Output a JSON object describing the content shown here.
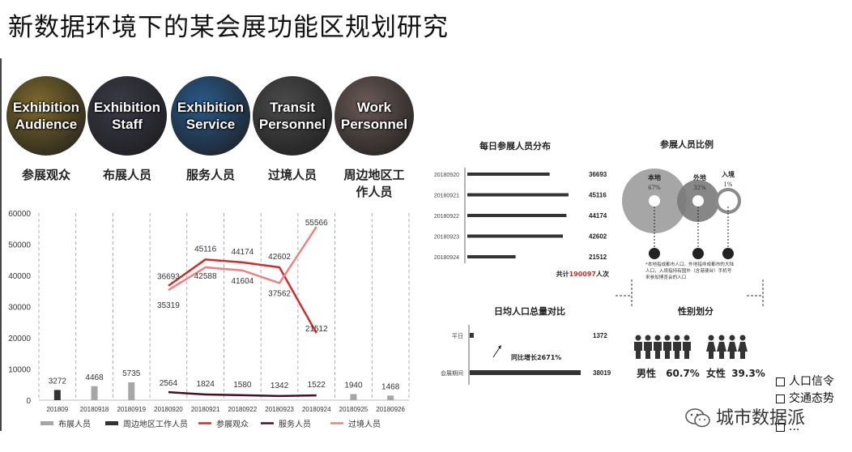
{
  "title": "新数据环境下的某会展功能区规划研究",
  "circles": [
    {
      "line1": "Exhibition",
      "line2": "Audience",
      "label": "参展观众",
      "color": "#7d6a2c"
    },
    {
      "line1": "Exhibition",
      "line2": "Staff",
      "label": "布展人员",
      "color": "#3a3a48"
    },
    {
      "line1": "Exhibition",
      "line2": "Service",
      "label": "服务人员",
      "color": "#2a5a8a"
    },
    {
      "line1": "Transit",
      "line2": "Personnel",
      "label": "过境人员",
      "color": "#4b4b4b"
    },
    {
      "line1": "Work",
      "line2": "Personnel",
      "label_l1": "周边地区工",
      "label_l2": "作人员",
      "color": "#6b5a55"
    }
  ],
  "main_chart": {
    "chart_data": {
      "type": "bar",
      "categories": [
        "201809",
        "20180918",
        "20180919",
        "20180920",
        "20180921",
        "20180922",
        "20180923",
        "20180924",
        "20180925",
        "20180926"
      ],
      "ylim": [
        0,
        60000
      ],
      "yticks": [
        "0",
        "10000",
        "20000",
        "30000",
        "40000",
        "50000",
        "60000"
      ],
      "series": [
        {
          "name": "布展人员",
          "kind": "bar",
          "color": "#a6a6a6",
          "values": [
            null,
            4468,
            5735,
            null,
            null,
            null,
            null,
            null,
            1940,
            1468
          ]
        },
        {
          "name": "周边地区工作人员",
          "kind": "bar",
          "color": "#333333",
          "values": [
            3272,
            null,
            null,
            null,
            null,
            null,
            null,
            null,
            null,
            null
          ]
        },
        {
          "name": "参展观众",
          "kind": "line",
          "color": "#d42a2a",
          "values": [
            null,
            null,
            null,
            36693,
            45116,
            44174,
            42602,
            21512,
            null,
            null
          ]
        },
        {
          "name": "服务人员",
          "kind": "line",
          "color": "#4a0e1e",
          "values": [
            null,
            null,
            null,
            2564,
            1824,
            1580,
            1342,
            1522,
            null,
            null
          ]
        },
        {
          "name": "过境人员",
          "kind": "line",
          "color": "#f08080",
          "values": [
            null,
            null,
            null,
            35319,
            42588,
            41604,
            37562,
            55566,
            null,
            null
          ]
        }
      ],
      "data_labels": [
        {
          "text": "3272"
        },
        {
          "text": "4468"
        },
        {
          "text": "5735"
        },
        {
          "text": "2564"
        },
        {
          "text": "1824"
        },
        {
          "text": "1580"
        },
        {
          "text": "1342"
        },
        {
          "text": "1522"
        },
        {
          "text": "1940"
        },
        {
          "text": "1468"
        },
        {
          "text": "36693"
        },
        {
          "text": "45116"
        },
        {
          "text": "44174"
        },
        {
          "text": "42602"
        },
        {
          "text": "21512"
        },
        {
          "text": "35319"
        },
        {
          "text": "42588"
        },
        {
          "text": "41604"
        },
        {
          "text": "37562"
        },
        {
          "text": "55566"
        }
      ]
    }
  },
  "daily_chart": {
    "title": "每日参展人员分布",
    "chart_data": {
      "type": "bar",
      "categories": [
        "20180920",
        "20180921",
        "20180922",
        "20180923",
        "20180924"
      ],
      "values": [
        36693,
        45116,
        44174,
        42602,
        21512
      ]
    },
    "total_prefix": "共计",
    "total_value": "190097",
    "total_suffix": "人次"
  },
  "ratio": {
    "title": "参展人员比例",
    "local_label": "本地",
    "local_pct": "67%",
    "out_label": "外地",
    "out_pct": "32%",
    "entry_label": "入境",
    "entry_pct": "1%",
    "note": "*本地指成都市人口，外地指非成都市的大陆人口，入境指持有国外（含港澳台）手机号来参加博览会的人口"
  },
  "compare": {
    "title": "日均人口总量对比",
    "chart_data": {
      "type": "bar",
      "categories": [
        "平日",
        "会展期间"
      ],
      "values": [
        1372,
        38019
      ]
    },
    "growth": "同比增长2671%"
  },
  "gender": {
    "title": "性别划分",
    "male_label": "男性",
    "male_pct": "60.7%",
    "female_label": "女性",
    "female_pct": "39.3%"
  },
  "bullets": [
    "人口信令",
    "交通态势",
    "..."
  ],
  "watermark": "城市数据派"
}
